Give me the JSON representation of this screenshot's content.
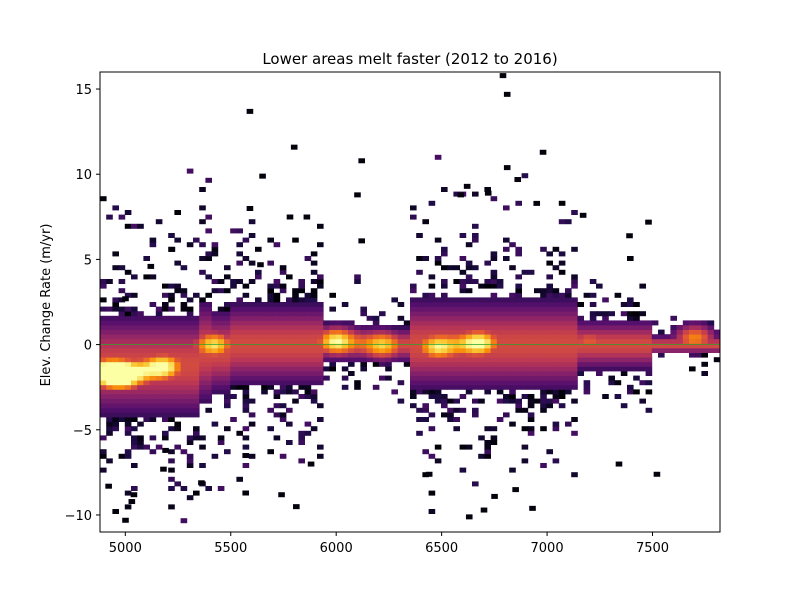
{
  "chart_data": {
    "type": "heatmap",
    "title": "Lower areas melt faster (2012 to 2016)",
    "xlabel": "",
    "ylabel": "Elev. Change Rate (m/yr)",
    "xlim": [
      4880,
      7820
    ],
    "ylim": [
      -11,
      16
    ],
    "x_ticks": [
      5000,
      5500,
      6000,
      6500,
      7000,
      7500
    ],
    "y_ticks": [
      -10,
      -5,
      0,
      5,
      10,
      15
    ],
    "x_tick_labels": [
      "5000",
      "5500",
      "6000",
      "6500",
      "7000",
      "7500"
    ],
    "y_tick_labels": [
      "−10",
      "−5",
      "0",
      "5",
      "10",
      "15"
    ],
    "colormap": "inferno",
    "background": "#ffffff",
    "bin_width": 29.4,
    "bin_height": 0.27,
    "zero_line_color": "#2ca02c",
    "grid": false,
    "high_density_clusters": [
      {
        "x": 4910,
        "y": -1.6,
        "intensity": 0.95
      },
      {
        "x": 5180,
        "y": -1.3,
        "intensity": 1.0
      },
      {
        "x": 5000,
        "y": -1.8,
        "intensity": 0.9
      },
      {
        "x": 5420,
        "y": 0.0,
        "intensity": 0.9
      },
      {
        "x": 6000,
        "y": 0.2,
        "intensity": 0.95
      },
      {
        "x": 6220,
        "y": 0.0,
        "intensity": 0.85
      },
      {
        "x": 6480,
        "y": -0.1,
        "intensity": 0.9
      },
      {
        "x": 6680,
        "y": 0.1,
        "intensity": 1.0
      },
      {
        "x": 7200,
        "y": 0.2,
        "intensity": 0.6
      },
      {
        "x": 7700,
        "y": 0.4,
        "intensity": 0.7
      }
    ],
    "outlier_points": [
      [
        5590,
        13.7
      ],
      [
        5800,
        11.6
      ],
      [
        5650,
        9.9
      ],
      [
        5590,
        8.0
      ],
      [
        5780,
        7.5
      ],
      [
        5860,
        7.5
      ],
      [
        6100,
        8.8
      ],
      [
        6120,
        10.8
      ],
      [
        6120,
        6.1
      ],
      [
        5640,
        4.7
      ],
      [
        6620,
        9.3
      ],
      [
        6790,
        15.8
      ],
      [
        6810,
        14.7
      ],
      [
        6810,
        10.4
      ],
      [
        6980,
        11.3
      ],
      [
        6950,
        8.3
      ],
      [
        6860,
        9.7
      ],
      [
        6590,
        8.8
      ],
      [
        7170,
        7.6
      ],
      [
        7480,
        7.2
      ],
      [
        7390,
        6.4
      ],
      [
        6720,
        8.9
      ],
      [
        5220,
        5.6
      ],
      [
        5120,
        4.6
      ],
      [
        5000,
        2.7
      ],
      [
        5030,
        -9.2
      ],
      [
        5000,
        -10.3
      ],
      [
        4920,
        -8.3
      ],
      [
        5180,
        -7.3
      ],
      [
        5360,
        -8.1
      ],
      [
        5570,
        -8.7
      ],
      [
        5810,
        -9.5
      ],
      [
        5740,
        -8.8
      ],
      [
        5880,
        -7.0
      ],
      [
        6440,
        -7.6
      ],
      [
        6630,
        -10.1
      ],
      [
        6700,
        -9.7
      ],
      [
        6850,
        -8.5
      ],
      [
        6930,
        -9.6
      ],
      [
        7340,
        -7.0
      ],
      [
        7520,
        -7.6
      ],
      [
        6750,
        -8.9
      ],
      [
        5570,
        -6.5
      ],
      [
        5190,
        -6.2
      ],
      [
        5040,
        -8.8
      ]
    ]
  }
}
